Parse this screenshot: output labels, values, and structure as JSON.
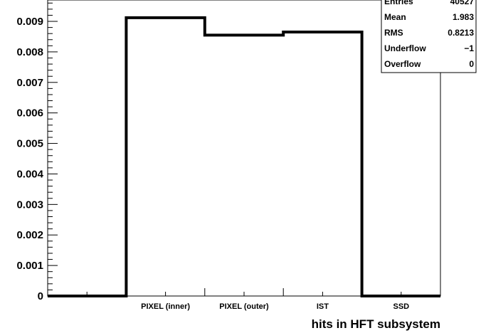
{
  "chart_data": {
    "type": "bar",
    "style": "histogram-step",
    "categories": [
      "",
      "PIXEL (inner)",
      "PIXEL (outer)",
      "IST",
      "SSD"
    ],
    "values": [
      0,
      0.00912,
      0.00855,
      0.00865,
      0
    ],
    "segments": [
      {
        "x0": 0,
        "x1": 2,
        "y": 0
      },
      {
        "x0": 2,
        "x1": 4,
        "y": 0.00912
      },
      {
        "x0": 4,
        "x1": 6,
        "y": 0.00855
      },
      {
        "x0": 6,
        "x1": 8,
        "y": 0.00865
      },
      {
        "x0": 8,
        "x1": 10,
        "y": 0
      }
    ],
    "xlim": [
      0,
      10
    ],
    "ylim": [
      0,
      0.0097
    ],
    "yticks": [
      0,
      0.001,
      0.002,
      0.003,
      0.004,
      0.005,
      0.006,
      0.007,
      0.008,
      0.009
    ],
    "ytick_labels": [
      "0",
      "0.001",
      "0.002",
      "0.003",
      "0.004",
      "0.005",
      "0.006",
      "0.007",
      "0.008",
      "0.009"
    ],
    "xlabel": "hits in HFT subsystem",
    "ylabel": "",
    "title": "",
    "grid": false,
    "line_color": "#000000",
    "stats_box": {
      "placement": "top-right",
      "rows": [
        {
          "label": "Entries",
          "value": "40527"
        },
        {
          "label": "Mean",
          "value": "1.983"
        },
        {
          "label": "RMS",
          "value": "0.8213"
        },
        {
          "label": "Underflow",
          "value": "−1"
        },
        {
          "label": "Overflow",
          "value": "0"
        }
      ]
    }
  }
}
